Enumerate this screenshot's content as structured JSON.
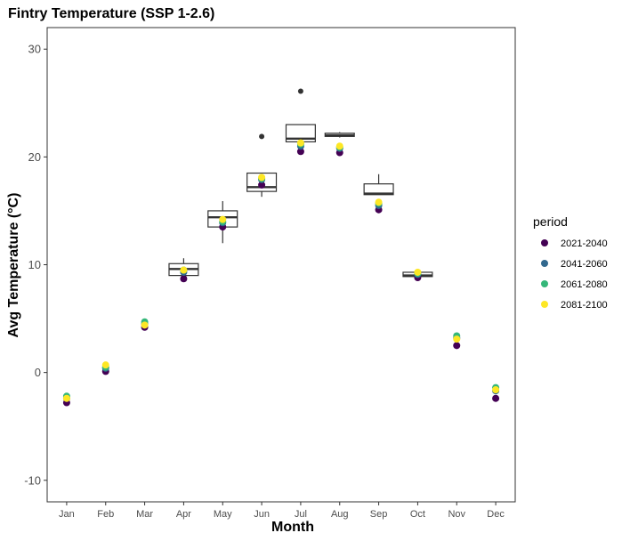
{
  "chart_data": {
    "type": "box-scatter",
    "title": "Fintry Temperature (SSP 1-2.6)",
    "xlabel": "Month",
    "ylabel": "Avg Temperature (°C)",
    "categories": [
      "Jan",
      "Feb",
      "Mar",
      "Apr",
      "May",
      "Jun",
      "Jul",
      "Aug",
      "Sep",
      "Oct",
      "Nov",
      "Dec"
    ],
    "ylim": [
      -12,
      32
    ],
    "yticks": [
      -10,
      0,
      10,
      20,
      30
    ],
    "grid": false,
    "legend": {
      "title": "period",
      "position": "right"
    },
    "boxes": [
      {
        "category": "Apr",
        "lower_whisker": 8.8,
        "q1": 9.0,
        "median": 9.6,
        "q3": 10.1,
        "upper_whisker": 10.6,
        "outliers": []
      },
      {
        "category": "May",
        "lower_whisker": 12.0,
        "q1": 13.5,
        "median": 14.4,
        "q3": 15.0,
        "upper_whisker": 15.9,
        "outliers": []
      },
      {
        "category": "Jun",
        "lower_whisker": 16.3,
        "q1": 16.8,
        "median": 17.2,
        "q3": 18.5,
        "upper_whisker": 18.5,
        "outliers": [
          21.9
        ]
      },
      {
        "category": "Jul",
        "lower_whisker": 21.2,
        "q1": 21.4,
        "median": 21.7,
        "q3": 23.0,
        "upper_whisker": 23.0,
        "outliers": [
          26.1
        ]
      },
      {
        "category": "Aug",
        "lower_whisker": 21.8,
        "q1": 21.9,
        "median": 22.0,
        "q3": 22.2,
        "upper_whisker": 22.3,
        "outliers": []
      },
      {
        "category": "Sep",
        "lower_whisker": 16.5,
        "q1": 16.5,
        "median": 16.6,
        "q3": 17.5,
        "upper_whisker": 18.4,
        "outliers": []
      },
      {
        "category": "Oct",
        "lower_whisker": 8.9,
        "q1": 8.9,
        "median": 9.0,
        "q3": 9.3,
        "upper_whisker": 9.4,
        "outliers": []
      }
    ],
    "series": [
      {
        "name": "2021-2040",
        "color": "#440154",
        "values": [
          -2.8,
          0.1,
          4.2,
          8.7,
          13.5,
          17.4,
          20.5,
          20.4,
          15.1,
          8.8,
          2.5,
          -2.4
        ]
      },
      {
        "name": "2041-2060",
        "color": "#31688E",
        "values": [
          -2.4,
          0.4,
          4.5,
          9.3,
          13.9,
          17.9,
          21.0,
          20.8,
          15.5,
          9.1,
          3.2,
          -1.7
        ]
      },
      {
        "name": "2061-2080",
        "color": "#35B779",
        "values": [
          -2.2,
          0.5,
          4.7,
          9.5,
          14.0,
          18.0,
          21.2,
          20.9,
          15.7,
          9.2,
          3.4,
          -1.4
        ]
      },
      {
        "name": "2081-2100",
        "color": "#FDE725",
        "values": [
          -2.4,
          0.7,
          4.4,
          9.5,
          14.2,
          18.1,
          21.3,
          21.0,
          15.8,
          9.3,
          3.1,
          -1.6
        ]
      }
    ],
    "colors": {
      "box_stroke": "#333333",
      "panel_border": "#333333",
      "axis_text": "#4d4d4d"
    }
  }
}
